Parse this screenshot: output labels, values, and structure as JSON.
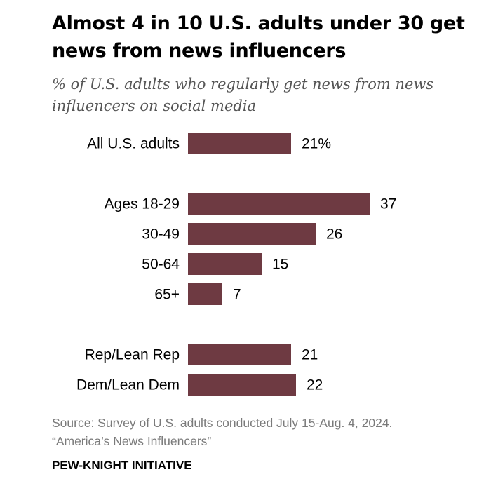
{
  "chart_data": {
    "type": "bar",
    "orientation": "horizontal",
    "title": "Almost 4 in 10 U.S. adults under 30 get news from news influencers",
    "subtitle": "% of U.S. adults who regularly get news from news influencers on social media",
    "groups": [
      {
        "name": "total",
        "categories": [
          "All U.S. adults"
        ],
        "values": [
          21
        ],
        "labels": [
          "21%"
        ]
      },
      {
        "name": "age",
        "categories": [
          "Ages 18-29",
          "30-49",
          "50-64",
          "65+"
        ],
        "values": [
          37,
          26,
          15,
          7
        ],
        "labels": [
          "37",
          "26",
          "15",
          "7"
        ]
      },
      {
        "name": "party",
        "categories": [
          "Rep/Lean Rep",
          "Dem/Lean Dem"
        ],
        "values": [
          21,
          22
        ],
        "labels": [
          "21",
          "22"
        ]
      }
    ],
    "categories": [
      "All U.S. adults",
      "Ages 18-29",
      "30-49",
      "50-64",
      "65+",
      "Rep/Lean Rep",
      "Dem/Lean Dem"
    ],
    "values": [
      21,
      37,
      26,
      15,
      7,
      21,
      22
    ],
    "value_labels": [
      "21%",
      "37",
      "26",
      "15",
      "7",
      "21",
      "22"
    ],
    "xlim": [
      0,
      40
    ],
    "grid": false,
    "bar_color": "#6e3a42"
  },
  "footer": {
    "source_line1": "Source: Survey of U.S. adults conducted July 15-Aug. 4, 2024.",
    "source_line2": "“America’s News Influencers”",
    "organization": "PEW-KNIGHT INITIATIVE"
  }
}
